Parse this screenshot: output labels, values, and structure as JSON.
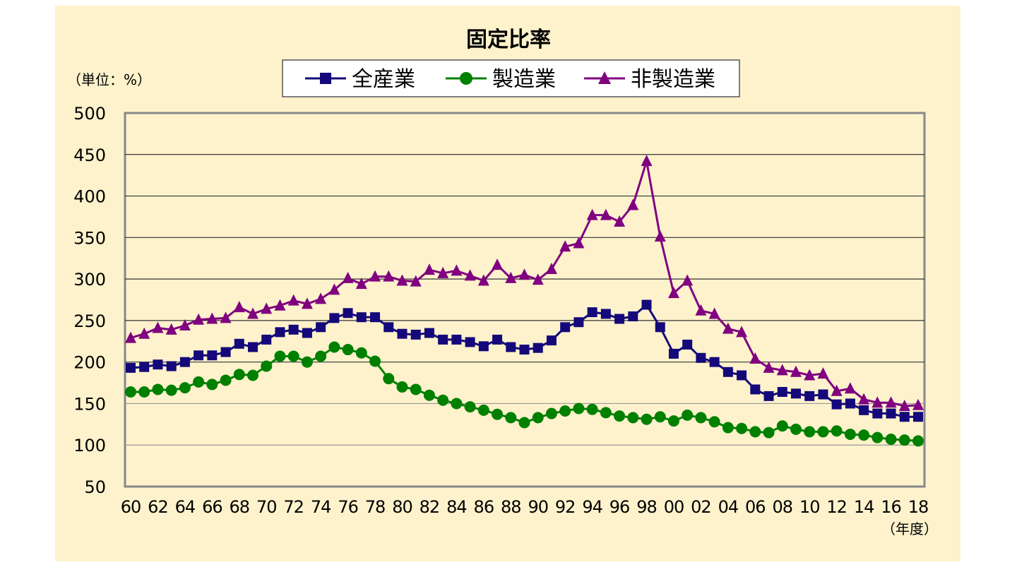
{
  "chart_data": {
    "type": "line",
    "title": "固定比率",
    "unit_label": "（単位：%）",
    "xlabel": "（年度）",
    "ylim": [
      50,
      500
    ],
    "yticks": [
      50,
      100,
      150,
      200,
      250,
      300,
      350,
      400,
      450,
      500
    ],
    "grid": true,
    "legend_position": "top",
    "x": [
      "60",
      "61",
      "62",
      "63",
      "64",
      "65",
      "66",
      "67",
      "68",
      "69",
      "70",
      "71",
      "72",
      "73",
      "74",
      "75",
      "76",
      "77",
      "78",
      "79",
      "80",
      "81",
      "82",
      "83",
      "84",
      "85",
      "86",
      "87",
      "88",
      "89",
      "90",
      "91",
      "92",
      "93",
      "94",
      "95",
      "96",
      "97",
      "98",
      "99",
      "00",
      "01",
      "02",
      "03",
      "04",
      "05",
      "06",
      "07",
      "08",
      "09",
      "10",
      "11",
      "12",
      "13",
      "14",
      "15",
      "16",
      "17",
      "18"
    ],
    "xtick_labels": [
      "60",
      "62",
      "64",
      "66",
      "68",
      "70",
      "72",
      "74",
      "76",
      "78",
      "80",
      "82",
      "84",
      "86",
      "88",
      "90",
      "92",
      "94",
      "96",
      "98",
      "00",
      "02",
      "04",
      "06",
      "08",
      "10",
      "12",
      "14",
      "16",
      "18"
    ],
    "series": [
      {
        "name": "全産業",
        "color": "#14087a",
        "marker": "square",
        "values": [
          193,
          194,
          197,
          195,
          200,
          208,
          208,
          212,
          222,
          218,
          227,
          236,
          239,
          235,
          242,
          253,
          259,
          254,
          254,
          242,
          234,
          233,
          235,
          227,
          227,
          224,
          219,
          227,
          218,
          215,
          217,
          226,
          242,
          248,
          260,
          258,
          252,
          255,
          269,
          242,
          210,
          221,
          205,
          200,
          188,
          184,
          167,
          159,
          164,
          162,
          159,
          161,
          149,
          150,
          142,
          138,
          138,
          134,
          134
        ]
      },
      {
        "name": "製造業",
        "color": "#008000",
        "marker": "circle",
        "values": [
          164,
          164,
          167,
          166,
          169,
          176,
          173,
          178,
          185,
          184,
          195,
          207,
          207,
          200,
          207,
          218,
          215,
          211,
          201,
          180,
          170,
          167,
          160,
          154,
          150,
          146,
          142,
          137,
          133,
          127,
          133,
          138,
          141,
          144,
          143,
          139,
          135,
          133,
          131,
          134,
          129,
          136,
          133,
          128,
          121,
          120,
          116,
          115,
          123,
          119,
          116,
          116,
          117,
          113,
          112,
          109,
          107,
          106,
          105
        ]
      },
      {
        "name": "非製造業",
        "color": "#800080",
        "marker": "triangle",
        "values": [
          229,
          234,
          241,
          239,
          244,
          251,
          252,
          253,
          266,
          258,
          264,
          268,
          274,
          270,
          276,
          287,
          301,
          294,
          303,
          303,
          298,
          297,
          311,
          307,
          310,
          304,
          298,
          317,
          301,
          305,
          299,
          312,
          339,
          343,
          377,
          377,
          369,
          389,
          442,
          351,
          283,
          298,
          262,
          258,
          240,
          236,
          204,
          193,
          190,
          188,
          184,
          186,
          165,
          168,
          155,
          151,
          151,
          147,
          148
        ]
      }
    ]
  }
}
